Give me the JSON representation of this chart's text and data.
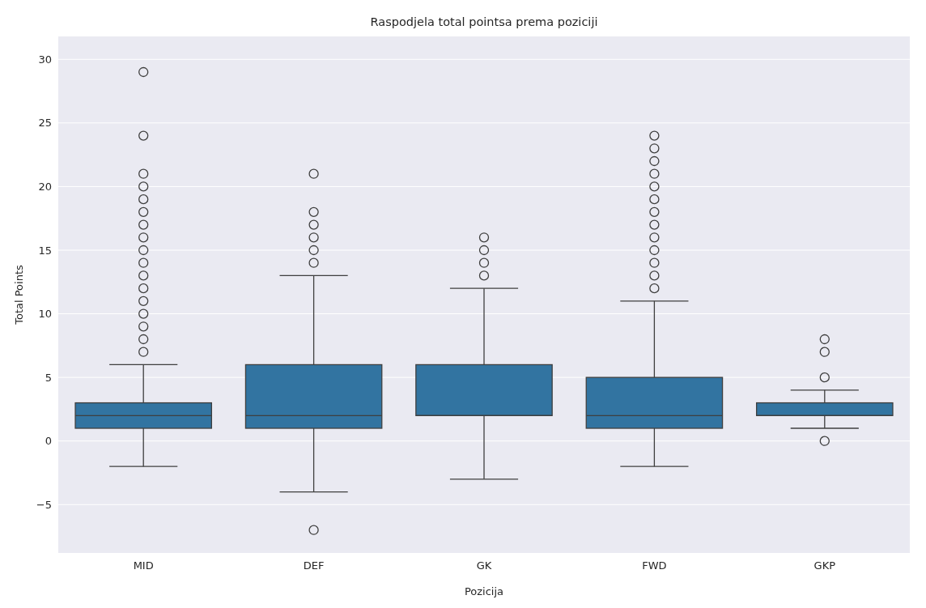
{
  "chart_data": {
    "type": "box",
    "title": "Raspodjela total pointsa prema poziciji",
    "xlabel": "Pozicija",
    "ylabel": "Total Points",
    "categories": [
      "MID",
      "DEF",
      "GK",
      "FWD",
      "GKP"
    ],
    "color": "#3274a1",
    "ylim": [
      -8.8,
      31.8
    ],
    "yticks": [
      -5,
      0,
      5,
      10,
      15,
      20,
      25,
      30
    ],
    "grid": "y",
    "boxes": [
      {
        "low": -2,
        "q1": 1,
        "median": 2,
        "q3": 3,
        "high": 6,
        "outliers": [
          7,
          8,
          9,
          10,
          11,
          12,
          13,
          14,
          15,
          16,
          17,
          18,
          19,
          20,
          21,
          24,
          29
        ]
      },
      {
        "low": -4,
        "q1": 1,
        "median": 2,
        "q3": 6,
        "high": 13,
        "outliers": [
          14,
          15,
          16,
          17,
          18,
          21,
          -7
        ]
      },
      {
        "low": -3,
        "q1": 2,
        "median": 2,
        "q3": 6,
        "high": 12,
        "outliers": [
          13,
          14,
          15,
          16
        ]
      },
      {
        "low": -2,
        "q1": 1,
        "median": 2,
        "q3": 5,
        "high": 11,
        "outliers": [
          12,
          13,
          14,
          15,
          16,
          17,
          18,
          19,
          20,
          21,
          22,
          23,
          24
        ]
      },
      {
        "low": 1,
        "q1": 2,
        "median": 2,
        "q3": 3,
        "high": 4,
        "outliers": [
          5,
          7,
          8,
          0
        ]
      }
    ]
  }
}
